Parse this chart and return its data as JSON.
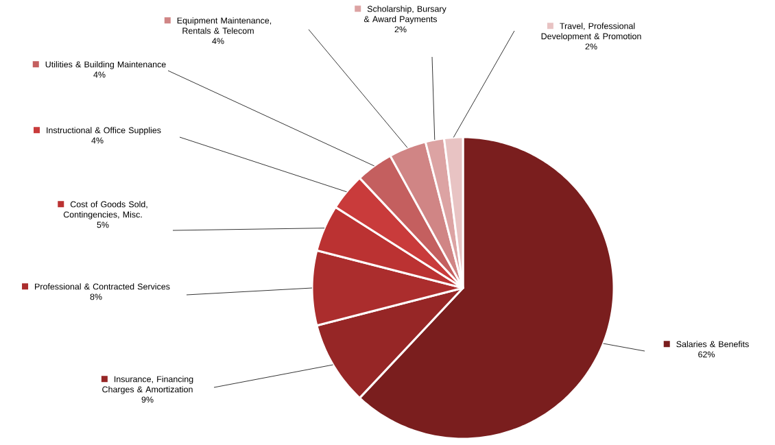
{
  "chart_data": {
    "type": "pie",
    "categories": [
      "Salaries & Benefits",
      "Insurance, Financing Charges & Amortization",
      "Professional & Contracted Services",
      "Cost of Goods Sold, Contingencies, Misc.",
      "Instructional & Office Supplies",
      "Utilities & Building Maintenance",
      "Equipment Maintenance, Rentals & Telecom",
      "Scholarship, Bursary & Award Payments",
      "Travel, Professional Development & Promotion"
    ],
    "values": [
      62,
      9,
      8,
      5,
      4,
      4,
      4,
      2,
      2
    ],
    "value_labels": [
      "62%",
      "9%",
      "8%",
      "5%",
      "4%",
      "4%",
      "4%",
      "2%",
      "2%"
    ],
    "colors": [
      "#7a1e1e",
      "#962626",
      "#ab2d2d",
      "#bb3232",
      "#c93b3b",
      "#c45f5f",
      "#d08585",
      "#dca3a3",
      "#e8c3c3"
    ],
    "legend": "left"
  }
}
